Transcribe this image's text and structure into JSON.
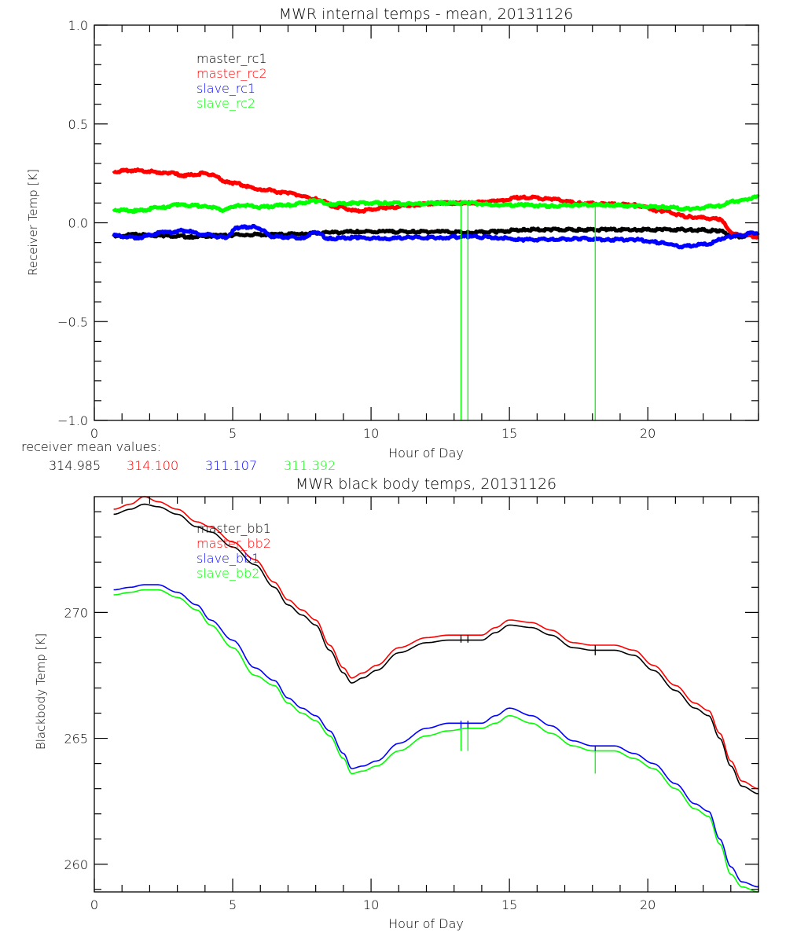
{
  "chart_data": [
    {
      "type": "line",
      "title": "MWR internal temps - mean, 20131126",
      "xlabel": "Hour of Day",
      "ylabel": "Receiver Temp [K]",
      "xlim": [
        0,
        24
      ],
      "ylim": [
        -1.0,
        1.0
      ],
      "xticks": [
        0,
        5,
        10,
        15,
        20
      ],
      "xtick_labels": [
        "0",
        "5",
        "10",
        "15",
        "20"
      ],
      "yticks": [
        -1.0,
        -0.5,
        0.0,
        0.5,
        1.0
      ],
      "ytick_labels": [
        "-1.0",
        "-0.5",
        "0.0",
        "0.5",
        "1.0"
      ],
      "grid": false,
      "legend_position": "top-left",
      "series": [
        {
          "name": "master_rc1",
          "color": "#000000",
          "x": [
            0.7,
            1.5,
            2.5,
            3.5,
            4.5,
            5.5,
            6.5,
            7.5,
            8.5,
            9.5,
            10.5,
            11.5,
            12.5,
            13.5,
            14.5,
            15.5,
            16.5,
            17.5,
            18.5,
            19.5,
            20.5,
            21.5,
            22.5,
            23.2,
            24.0
          ],
          "y": [
            -0.07,
            -0.06,
            -0.065,
            -0.07,
            -0.065,
            -0.06,
            -0.06,
            -0.055,
            -0.05,
            -0.045,
            -0.045,
            -0.045,
            -0.045,
            -0.05,
            -0.045,
            -0.035,
            -0.035,
            -0.035,
            -0.035,
            -0.035,
            -0.035,
            -0.035,
            -0.04,
            -0.07,
            -0.06
          ]
        },
        {
          "name": "master_rc2",
          "color": "#ff0000",
          "x": [
            0.7,
            1.5,
            2.5,
            3.3,
            4.0,
            5.0,
            6.0,
            7.0,
            8.0,
            8.8,
            9.5,
            10.5,
            11.5,
            12.5,
            13.5,
            14.5,
            15.5,
            16.5,
            17.5,
            18.5,
            19.5,
            20.5,
            21.5,
            22.5,
            23.2,
            24.0
          ],
          "y": [
            0.26,
            0.265,
            0.255,
            0.24,
            0.25,
            0.2,
            0.17,
            0.15,
            0.12,
            0.08,
            0.06,
            0.075,
            0.09,
            0.1,
            0.1,
            0.11,
            0.13,
            0.12,
            0.1,
            0.095,
            0.09,
            0.06,
            0.03,
            0.02,
            -0.06,
            -0.07
          ]
        },
        {
          "name": "slave_rc1",
          "color": "#0000ff",
          "x": [
            0.7,
            1.5,
            2.5,
            3.2,
            4.0,
            4.7,
            5.2,
            5.8,
            6.5,
            7.5,
            8.0,
            8.5,
            9.5,
            10.5,
            11.5,
            12.5,
            13.5,
            14.5,
            15.5,
            16.5,
            17.5,
            18.5,
            19.5,
            20.5,
            21.2,
            22.0,
            23.0,
            24.0
          ],
          "y": [
            -0.065,
            -0.075,
            -0.05,
            -0.04,
            -0.06,
            -0.075,
            -0.025,
            -0.02,
            -0.07,
            -0.075,
            -0.05,
            -0.08,
            -0.075,
            -0.08,
            -0.075,
            -0.075,
            -0.07,
            -0.075,
            -0.085,
            -0.085,
            -0.08,
            -0.085,
            -0.085,
            -0.1,
            -0.12,
            -0.11,
            -0.07,
            -0.05
          ]
        },
        {
          "name": "slave_rc2",
          "color": "#00ff00",
          "x": [
            0.7,
            1.5,
            2.5,
            3.0,
            4.0,
            4.7,
            5.2,
            6.0,
            7.0,
            8.0,
            8.5,
            9.5,
            10.5,
            11.5,
            12.5,
            13.5,
            14.5,
            15.5,
            16.5,
            17.5,
            18.5,
            19.5,
            20.5,
            21.5,
            22.5,
            23.2,
            24.0
          ],
          "y": [
            0.065,
            0.06,
            0.08,
            0.09,
            0.085,
            0.065,
            0.09,
            0.08,
            0.09,
            0.11,
            0.095,
            0.1,
            0.1,
            0.095,
            0.1,
            0.1,
            0.09,
            0.09,
            0.085,
            0.09,
            0.09,
            0.085,
            0.08,
            0.07,
            0.085,
            0.11,
            0.13
          ]
        }
      ],
      "vertical_spikes": [
        {
          "x": 13.25,
          "color": "#00ff00",
          "from": -1.0,
          "to": 0.1
        },
        {
          "x": 13.5,
          "color": "#00ff00",
          "from": -1.0,
          "to": 0.1
        },
        {
          "x": 18.1,
          "color": "#00ff00",
          "from": -1.0,
          "to": 0.09
        }
      ]
    },
    {
      "type": "line",
      "title": "MWR black body temps, 20131126",
      "xlabel": "Hour of Day",
      "ylabel": "Blackbody Temp [K]",
      "xlim": [
        0,
        24
      ],
      "ylim": [
        258.9,
        274.6
      ],
      "xticks": [
        0,
        5,
        10,
        15,
        20
      ],
      "xtick_labels": [
        "0",
        "5",
        "10",
        "15",
        "20"
      ],
      "yticks": [
        260,
        265,
        270
      ],
      "ytick_labels": [
        "260",
        "265",
        "270"
      ],
      "grid": false,
      "legend_position": "top-center",
      "series": [
        {
          "name": "master_bb1",
          "color": "#000000",
          "x": [
            0.7,
            1.3,
            1.8,
            2.3,
            3.0,
            3.7,
            4.2,
            5.0,
            5.8,
            6.5,
            7.0,
            7.5,
            8.0,
            8.5,
            9.0,
            9.3,
            9.7,
            10.2,
            11.0,
            12.0,
            12.8,
            13.5,
            14.0,
            14.5,
            15.0,
            15.8,
            16.5,
            17.3,
            18.0,
            18.8,
            19.5,
            20.2,
            21.0,
            21.7,
            22.2,
            22.6,
            23.0,
            23.4,
            24.0
          ],
          "y": [
            273.9,
            274.1,
            274.3,
            274.2,
            273.9,
            273.4,
            273.2,
            272.6,
            271.9,
            271.0,
            270.3,
            269.9,
            269.5,
            268.5,
            267.6,
            267.2,
            267.4,
            267.7,
            268.4,
            268.8,
            268.9,
            268.9,
            268.9,
            269.2,
            269.5,
            269.4,
            269.1,
            268.6,
            268.5,
            268.5,
            268.3,
            267.7,
            266.9,
            266.2,
            265.9,
            265.0,
            263.9,
            263.1,
            262.8
          ]
        },
        {
          "name": "master_bb2",
          "color": "#ff0000",
          "x": [
            0.7,
            1.3,
            1.8,
            2.3,
            3.0,
            3.7,
            4.2,
            5.0,
            5.8,
            6.5,
            7.0,
            7.5,
            8.0,
            8.5,
            9.0,
            9.3,
            9.7,
            10.2,
            11.0,
            12.0,
            12.8,
            13.5,
            14.0,
            14.5,
            15.0,
            15.8,
            16.5,
            17.3,
            18.0,
            18.8,
            19.5,
            20.2,
            21.0,
            21.7,
            22.2,
            22.6,
            23.0,
            23.4,
            24.0
          ],
          "y": [
            274.1,
            274.3,
            274.6,
            274.4,
            274.1,
            273.6,
            273.4,
            272.8,
            272.1,
            271.2,
            270.5,
            270.1,
            269.7,
            268.7,
            267.8,
            267.4,
            267.6,
            267.9,
            268.6,
            269.0,
            269.1,
            269.1,
            269.1,
            269.4,
            269.7,
            269.6,
            269.3,
            268.8,
            268.7,
            268.7,
            268.5,
            267.9,
            267.1,
            266.4,
            266.1,
            265.2,
            264.1,
            263.3,
            263.0
          ]
        },
        {
          "name": "slave_bb1",
          "color": "#0000ff",
          "x": [
            0.7,
            1.3,
            1.8,
            2.3,
            3.0,
            3.7,
            4.2,
            5.0,
            5.8,
            6.5,
            7.0,
            7.5,
            8.0,
            8.5,
            9.0,
            9.3,
            9.7,
            10.2,
            11.0,
            12.0,
            12.8,
            13.5,
            14.0,
            14.5,
            15.0,
            15.8,
            16.5,
            17.3,
            18.0,
            18.8,
            19.5,
            20.2,
            21.0,
            21.7,
            22.2,
            22.6,
            23.0,
            23.4,
            24.0
          ],
          "y": [
            270.9,
            271.0,
            271.1,
            271.1,
            270.8,
            270.3,
            269.7,
            268.9,
            267.8,
            267.3,
            266.6,
            266.2,
            265.9,
            265.3,
            264.4,
            263.8,
            263.9,
            264.1,
            264.8,
            265.4,
            265.6,
            265.6,
            265.6,
            265.9,
            266.2,
            265.9,
            265.5,
            264.9,
            264.7,
            264.7,
            264.4,
            264.0,
            263.2,
            262.4,
            262.1,
            261.0,
            259.9,
            259.3,
            259.1
          ]
        },
        {
          "name": "slave_bb2",
          "color": "#00ff00",
          "x": [
            0.7,
            1.3,
            1.8,
            2.3,
            3.0,
            3.7,
            4.2,
            5.0,
            5.8,
            6.5,
            7.0,
            7.5,
            8.0,
            8.5,
            9.0,
            9.3,
            9.7,
            10.2,
            11.0,
            12.0,
            12.8,
            13.5,
            14.0,
            14.5,
            15.0,
            15.8,
            16.5,
            17.3,
            18.0,
            18.8,
            19.5,
            20.2,
            21.0,
            21.7,
            22.2,
            22.6,
            23.0,
            23.4,
            24.0
          ],
          "y": [
            270.7,
            270.8,
            270.9,
            270.9,
            270.6,
            270.1,
            269.5,
            268.6,
            267.5,
            267.1,
            266.4,
            266.0,
            265.7,
            265.1,
            264.2,
            263.6,
            263.7,
            263.9,
            264.5,
            265.1,
            265.3,
            265.4,
            265.4,
            265.6,
            265.9,
            265.6,
            265.2,
            264.7,
            264.5,
            264.5,
            264.2,
            263.8,
            263.0,
            262.2,
            261.9,
            260.8,
            259.6,
            259.1,
            258.9
          ]
        }
      ],
      "vertical_spikes": [
        {
          "x": 13.25,
          "color": "#000000",
          "from": 268.8,
          "to": 269.1
        },
        {
          "x": 13.5,
          "color": "#000000",
          "from": 268.8,
          "to": 269.1
        },
        {
          "x": 18.1,
          "color": "#000000",
          "from": 268.3,
          "to": 268.7
        },
        {
          "x": 13.25,
          "color": "#00ff00",
          "from": 264.5,
          "to": 265.4
        },
        {
          "x": 13.5,
          "color": "#00ff00",
          "from": 264.5,
          "to": 265.4
        },
        {
          "x": 18.1,
          "color": "#00ff00",
          "from": 263.6,
          "to": 264.5
        },
        {
          "x": 13.25,
          "color": "#0000ff",
          "from": 265.4,
          "to": 265.7
        },
        {
          "x": 13.5,
          "color": "#0000ff",
          "from": 265.4,
          "to": 265.7
        },
        {
          "x": 18.1,
          "color": "#0000ff",
          "from": 264.5,
          "to": 264.7
        }
      ]
    }
  ],
  "receiver_means": {
    "label": "receiver mean values:",
    "values": [
      {
        "text": "314.985",
        "color": "#000000"
      },
      {
        "text": "314.100",
        "color": "#ff0000"
      },
      {
        "text": "311.107",
        "color": "#0000ff"
      },
      {
        "text": "311.392",
        "color": "#00ff00"
      }
    ]
  }
}
